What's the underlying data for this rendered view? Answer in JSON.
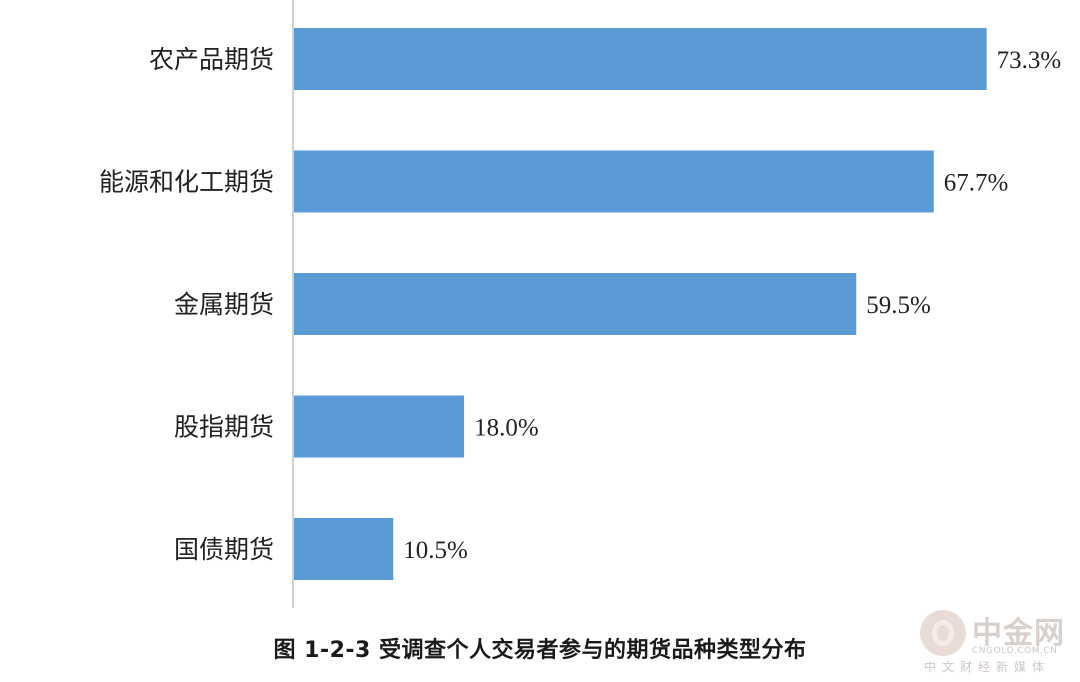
{
  "chart_data": {
    "type": "bar",
    "orientation": "horizontal",
    "categories": [
      "农产品期货",
      "能源和化工期货",
      "金属期货",
      "股指期货",
      "国债期货"
    ],
    "values": [
      73.3,
      67.7,
      59.5,
      18.0,
      10.5
    ],
    "value_labels": [
      "73.3%",
      "67.7%",
      "59.5%",
      "18.0%",
      "10.5%"
    ],
    "xlim": [
      0,
      100
    ],
    "grid": false,
    "legend": "none",
    "title": "图 1-2-3  受调查个人交易者参与的期货品种类型分布",
    "bar_color": "#5b9bd5",
    "axis_color": "#d0d0d0"
  },
  "watermark": {
    "brand": "中金网",
    "domain": "CNGOLD.COM.CN",
    "tagline": "中文财经新媒体"
  }
}
